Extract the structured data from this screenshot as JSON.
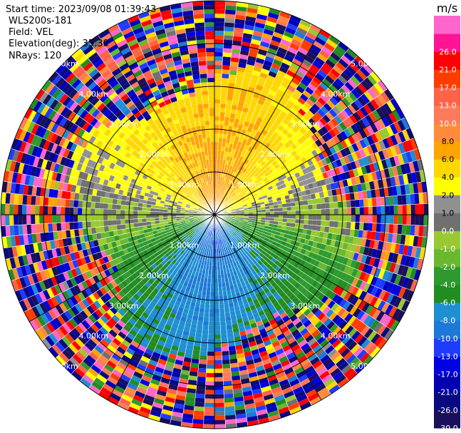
{
  "header": {
    "start_time": "Start time: 2023/09/08 01:39:43",
    "site": "WLS200s-181",
    "field": "Field: VEL",
    "elevation": "Elevation(deg): 35.30",
    "nrays": "NRays: 120"
  },
  "chart_data": {
    "type": "heatmap",
    "subtype": "polar-ppi",
    "field": "VEL",
    "nrays": 120,
    "range_rings_km": [
      1.0,
      2.0,
      3.0,
      4.0,
      5.0
    ],
    "ring_labels": [
      "1.00km",
      "2.00km",
      "3.00km",
      "4.00km",
      "5.00km"
    ],
    "colorbar": {
      "unit": "m/s",
      "levels": [
        -30.0,
        -26.0,
        -21.0,
        -17.0,
        -13.0,
        -10.0,
        -8.0,
        -6.0,
        -4.0,
        -2.0,
        -1.0,
        0.0,
        1.0,
        2.0,
        4.0,
        6.0,
        8.0,
        10.0,
        13.0,
        17.0,
        21.0,
        26.0
      ],
      "labels": [
        "-30.0",
        "-26.0",
        "-21.0",
        "-17.0",
        "-13.0",
        "-10.0",
        "-8.0",
        "-6.0",
        "-4.0",
        "-2.0",
        "-1.0",
        "0.0",
        "1.0",
        "2.0",
        "4.0",
        "6.0",
        "8.0",
        "10.0",
        "13.0",
        "17.0",
        "21.0",
        "26.0"
      ],
      "colors": [
        "#1a0f5a",
        "#0a0a80",
        "#0000b0",
        "#0000e0",
        "#1e3cff",
        "#1e78d8",
        "#1e8fd0",
        "#228b22",
        "#2e9a2e",
        "#6ab82e",
        "#9ac832",
        "#707070",
        "#909090",
        "#ffff00",
        "#ffd700",
        "#ffa500",
        "#ff8c3c",
        "#ff7a5a",
        "#ff6347",
        "#ff3c00",
        "#ff0000",
        "#ff1493",
        "#ff66cc"
      ]
    },
    "field_pattern": {
      "inner_range_km": 3.0,
      "away_sector_deg": [
        270,
        90
      ],
      "toward_sector_deg": [
        90,
        270
      ],
      "max_away_ms": 8.0,
      "max_toward_ms": -10.0,
      "outer_noise": true
    }
  }
}
